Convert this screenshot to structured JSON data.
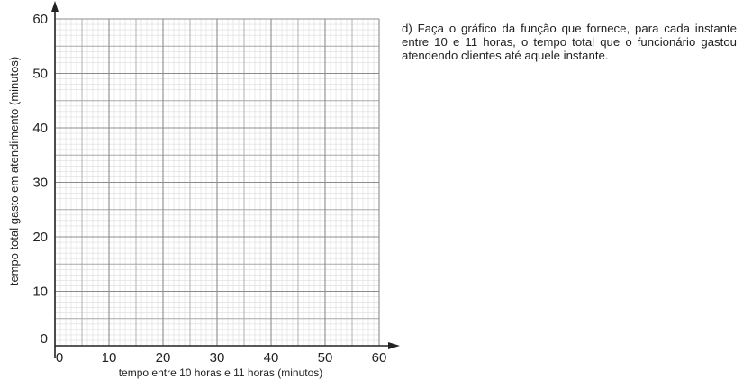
{
  "chart_data": {
    "type": "line",
    "title": "",
    "xlabel": "tempo entre 10 horas e 11 horas (minutos)",
    "ylabel": "tempo total gasto em atendimento (minutos)",
    "xlim": [
      0,
      60
    ],
    "ylim": [
      0,
      60
    ],
    "x_ticks": [
      0,
      10,
      20,
      30,
      40,
      50,
      60
    ],
    "y_ticks": [
      0,
      10,
      20,
      30,
      40,
      50,
      60
    ],
    "x_tick_labels": [
      "0",
      "10",
      "20",
      "30",
      "40",
      "50",
      "60"
    ],
    "y_tick_labels": [
      "0",
      "10",
      "20",
      "30",
      "40",
      "50",
      "60"
    ],
    "minor_step": 1,
    "medium_step": 5,
    "grid": true,
    "series": []
  },
  "question": {
    "text": "d) Faça o gráfico da função que fornece, para cada instante entre 10 e 11 horas, o tempo total que o funcionário gastou atendendo clientes até aquele instante."
  },
  "colors": {
    "minor_grid": "#dcdcdc",
    "medium_grid": "#a8a8a8",
    "major_grid": "#8c8c8c",
    "axis": "#222222"
  }
}
